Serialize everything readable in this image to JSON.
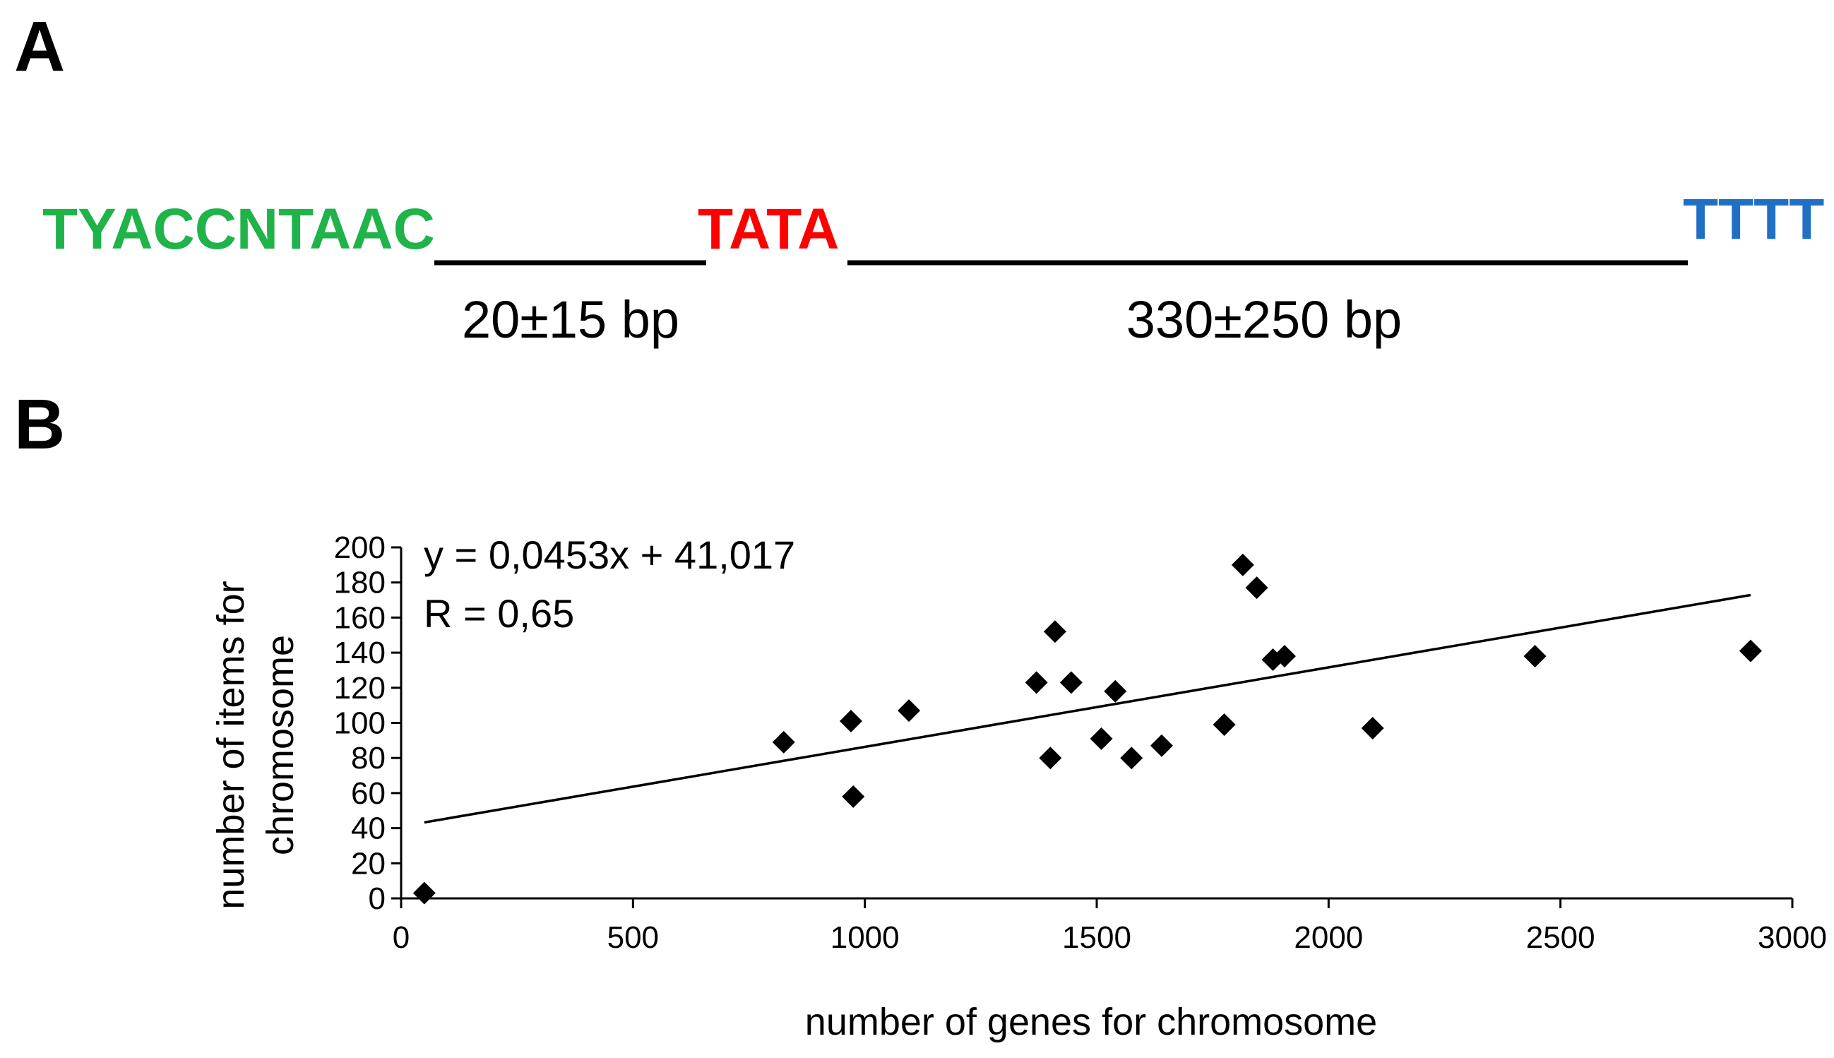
{
  "panel_a": {
    "label": "A",
    "motifs": [
      {
        "text": "TYACCNTAAC",
        "color": "#1fb34a"
      },
      {
        "text": "TATA",
        "color": "#ff0000"
      },
      {
        "text": "TTTT",
        "color": "#1f6fc4"
      }
    ],
    "spacers": [
      {
        "label": "20±15 bp"
      },
      {
        "label": "330±250 bp"
      }
    ]
  },
  "panel_b": {
    "label": "B"
  },
  "chart_data": {
    "type": "scatter",
    "xlabel": "number of genes for chromosome",
    "ylabel_lines": [
      "number of items for",
      "chromosome"
    ],
    "xlim": [
      0,
      3000
    ],
    "ylim": [
      0,
      200
    ],
    "xticks": [
      0,
      500,
      1000,
      1500,
      2000,
      2500,
      3000
    ],
    "yticks": [
      0,
      20,
      40,
      60,
      80,
      100,
      120,
      140,
      160,
      180,
      200
    ],
    "grid": false,
    "marker": "diamond",
    "marker_color": "#000000",
    "points": [
      {
        "x": 50,
        "y": 3
      },
      {
        "x": 825,
        "y": 89
      },
      {
        "x": 970,
        "y": 101
      },
      {
        "x": 975,
        "y": 58
      },
      {
        "x": 1095,
        "y": 107
      },
      {
        "x": 1370,
        "y": 123
      },
      {
        "x": 1400,
        "y": 80
      },
      {
        "x": 1410,
        "y": 152
      },
      {
        "x": 1445,
        "y": 123
      },
      {
        "x": 1510,
        "y": 91
      },
      {
        "x": 1540,
        "y": 118
      },
      {
        "x": 1575,
        "y": 80
      },
      {
        "x": 1640,
        "y": 87
      },
      {
        "x": 1775,
        "y": 99
      },
      {
        "x": 1815,
        "y": 190
      },
      {
        "x": 1845,
        "y": 177
      },
      {
        "x": 1880,
        "y": 136
      },
      {
        "x": 1905,
        "y": 138
      },
      {
        "x": 2095,
        "y": 97
      },
      {
        "x": 2445,
        "y": 138
      },
      {
        "x": 2910,
        "y": 141
      }
    ],
    "trendline": {
      "slope": 0.0453,
      "intercept": 41.017,
      "x_range": [
        50,
        2910
      ],
      "equation": "y = 0,0453x + 41,017",
      "r_label": "R = 0,65"
    }
  }
}
